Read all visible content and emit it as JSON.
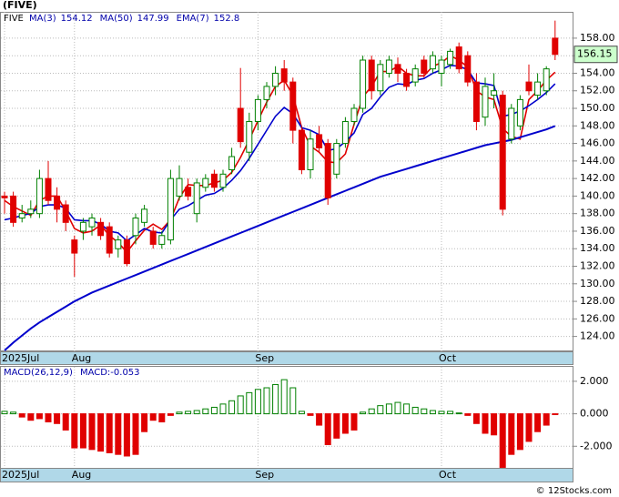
{
  "chart_data": [
    {
      "type": "candlestick",
      "title": "(FIVE)",
      "ticker": "FIVE",
      "categories": [
        "2025Jul",
        null,
        null,
        null,
        null,
        null,
        null,
        null,
        "Aug",
        null,
        null,
        null,
        null,
        null,
        null,
        null,
        null,
        null,
        null,
        null,
        null,
        null,
        null,
        null,
        null,
        null,
        null,
        null,
        null,
        "Sep",
        null,
        null,
        null,
        null,
        null,
        null,
        null,
        null,
        null,
        null,
        null,
        null,
        null,
        null,
        null,
        null,
        null,
        null,
        null,
        null,
        "Oct",
        null,
        null,
        null,
        null,
        null,
        null,
        null,
        null,
        null,
        null,
        null,
        null,
        null
      ],
      "open": [
        140,
        140,
        137.5,
        138,
        138,
        142,
        140,
        139,
        135,
        136,
        136.5,
        137,
        136.5,
        134,
        135,
        135.5,
        137,
        136,
        134.5,
        135,
        140,
        141,
        138,
        141,
        142.5,
        141,
        143,
        150,
        145,
        148.5,
        151,
        152.5,
        154.5,
        153,
        147.5,
        143,
        147,
        146,
        142.5,
        146,
        148.5,
        150,
        155.5,
        152,
        154,
        155,
        154,
        153,
        155.5,
        154.5,
        154,
        155,
        157,
        156,
        153,
        149,
        151.5,
        151.5,
        146.5,
        148,
        153,
        151.5,
        152,
        158
      ],
      "high": [
        140.5,
        140.5,
        139,
        139.5,
        143,
        144,
        141,
        139.5,
        135.5,
        137.5,
        138,
        137.5,
        137,
        135.5,
        135.5,
        138,
        139,
        136.5,
        136,
        143,
        143.5,
        142,
        142,
        142.5,
        143,
        143,
        145.5,
        154.6,
        149.5,
        151.5,
        153,
        154.8,
        155.5,
        153.5,
        148,
        147.5,
        148,
        146.5,
        146.5,
        149,
        150.5,
        156,
        156,
        155.5,
        156,
        155.8,
        154.5,
        155,
        156,
        156.5,
        156,
        156.8,
        157.5,
        156.5,
        154,
        153.5,
        154,
        152,
        150.5,
        151.5,
        155,
        154,
        154.8,
        160
      ],
      "low": [
        138,
        136.5,
        137,
        137.5,
        137.5,
        139,
        137,
        136,
        130.8,
        135,
        135.5,
        135,
        133,
        133,
        132,
        134.5,
        136.5,
        134,
        134,
        134.5,
        139.5,
        139.5,
        137,
        140.5,
        140.5,
        140.5,
        142.5,
        145.5,
        144,
        147.5,
        150,
        151.5,
        152,
        146,
        142.5,
        142,
        145,
        139,
        142,
        145.5,
        148,
        149.5,
        151,
        151.5,
        153.5,
        153,
        152,
        152.5,
        153.5,
        154,
        152.5,
        154.5,
        154,
        152.5,
        147.5,
        148,
        150,
        137.8,
        146,
        147.5,
        151.5,
        151,
        151.5,
        155.5
      ],
      "close": [
        139.8,
        137,
        138,
        138.5,
        142,
        139.5,
        138.5,
        137,
        133.5,
        137,
        137.5,
        135.5,
        133.5,
        135,
        132.3,
        137.5,
        138.5,
        134.5,
        135.5,
        142,
        142,
        140,
        141.5,
        142,
        141,
        142.5,
        144.5,
        146.2,
        148.5,
        151,
        152.5,
        154,
        153,
        147.5,
        143,
        146.5,
        145.5,
        139.8,
        146,
        148.5,
        150,
        155.5,
        152,
        155,
        155.5,
        154,
        152.5,
        154.5,
        154,
        156,
        155.5,
        156.5,
        154.5,
        153,
        148.5,
        152.5,
        152,
        138.5,
        150,
        151,
        152,
        153,
        154.5,
        156.15
      ],
      "up_color": "#008000",
      "down_color": "#e00000",
      "series": [
        {
          "name": "MA(3)",
          "legend_value": 154.12,
          "color": "#e00000",
          "values": [
            139.5,
            138.8,
            138.3,
            137.8,
            139.5,
            140,
            140,
            138.3,
            136.3,
            135.8,
            136,
            136.7,
            135.5,
            134.7,
            133.6,
            134.9,
            136.1,
            136.8,
            136.2,
            137.3,
            139.8,
            141.3,
            141.2,
            141.2,
            141.5,
            141.8,
            142.7,
            144.4,
            146.4,
            148.6,
            150.7,
            152.5,
            153.2,
            151.5,
            147.8,
            145.7,
            145,
            143.9,
            143.8,
            144.8,
            148.2,
            151.3,
            152.5,
            154.2,
            154.2,
            154.8,
            154,
            153.7,
            153.7,
            154.8,
            155.2,
            156,
            155.5,
            154.7,
            152,
            151.3,
            151,
            147.7,
            146.8,
            146.5,
            151,
            152,
            153.2,
            154.12
          ]
        },
        {
          "name": "MA(50)",
          "legend_value": 147.99,
          "color": "#0000cc",
          "values": [
            122.4,
            123.3,
            124.1,
            124.9,
            125.6,
            126.2,
            126.8,
            127.4,
            128,
            128.5,
            129,
            129.4,
            129.8,
            130.2,
            130.6,
            131,
            131.4,
            131.8,
            132.2,
            132.6,
            133,
            133.4,
            133.8,
            134.2,
            134.6,
            135,
            135.4,
            135.8,
            136.2,
            136.6,
            137,
            137.4,
            137.8,
            138.2,
            138.6,
            139,
            139.4,
            139.8,
            140.2,
            140.6,
            141,
            141.4,
            141.8,
            142.2,
            142.5,
            142.8,
            143.1,
            143.4,
            143.7,
            144,
            144.3,
            144.6,
            144.9,
            145.2,
            145.5,
            145.8,
            146,
            146.2,
            146.4,
            146.7,
            147,
            147.3,
            147.6,
            147.99
          ]
        },
        {
          "name": "EMA(7)",
          "legend_value": 152.8,
          "color": "#0000cc",
          "values": [
            137.3,
            137.5,
            137.8,
            138,
            138.8,
            139,
            139,
            138.6,
            137.3,
            137.2,
            137.2,
            136.8,
            136,
            135.8,
            134.9,
            135.6,
            136.3,
            135.9,
            135.8,
            137.3,
            138.5,
            138.9,
            139.5,
            140.1,
            140.3,
            140.9,
            141.8,
            142.9,
            144.3,
            145.9,
            147.5,
            149.1,
            150.1,
            149.4,
            147.8,
            147.5,
            147,
            145.2,
            145.4,
            146.2,
            147.2,
            149.3,
            150,
            151.3,
            152.4,
            152.8,
            152.7,
            153.2,
            153.4,
            154,
            154.4,
            154.9,
            154.8,
            154.4,
            152.9,
            152.8,
            152.6,
            149.1,
            149.3,
            149.7,
            150.3,
            151,
            151.8,
            152.8
          ]
        }
      ],
      "ylim": [
        122.3,
        161.0
      ],
      "yticks": [
        {
          "value": 124,
          "label": "124.00"
        },
        {
          "value": 126,
          "label": "126.00"
        },
        {
          "value": 128,
          "label": "128.00"
        },
        {
          "value": 130,
          "label": "130.00"
        },
        {
          "value": 132,
          "label": "132.00"
        },
        {
          "value": 134,
          "label": "134.00"
        },
        {
          "value": 136,
          "label": "136.00"
        },
        {
          "value": 138,
          "label": "138.00"
        },
        {
          "value": 140,
          "label": "140.00"
        },
        {
          "value": 142,
          "label": "142.00"
        },
        {
          "value": 144,
          "label": "144.00"
        },
        {
          "value": 146,
          "label": "146.00"
        },
        {
          "value": 148,
          "label": "148.00"
        },
        {
          "value": 150,
          "label": "150.00"
        },
        {
          "value": 152,
          "label": "152.00"
        },
        {
          "value": 154,
          "label": "154.00"
        },
        {
          "value": 156,
          "label": "156.00"
        },
        {
          "value": 158,
          "label": "158.00"
        }
      ],
      "last_value": 156.15,
      "grid": true
    },
    {
      "type": "bar",
      "title": "MACD(26,12,9)",
      "label": "MACD:-0.053",
      "values": [
        0.15,
        0.1,
        -0.2,
        -0.4,
        -0.3,
        -0.5,
        -0.6,
        -1.0,
        -2.1,
        -2.1,
        -2.2,
        -2.3,
        -2.4,
        -2.5,
        -2.6,
        -2.5,
        -1.1,
        -0.4,
        -0.5,
        -0.1,
        0.1,
        0.15,
        0.2,
        0.3,
        0.4,
        0.6,
        0.8,
        1.1,
        1.3,
        1.5,
        1.6,
        1.8,
        2.1,
        1.6,
        0.15,
        -0.1,
        -0.7,
        -1.9,
        -1.5,
        -1.2,
        -1.0,
        0.1,
        0.3,
        0.5,
        0.6,
        0.7,
        0.6,
        0.4,
        0.3,
        0.2,
        0.15,
        0.15,
        0.05,
        -0.1,
        -0.6,
        -1.2,
        -1.3,
        -3.3,
        -2.5,
        -2.2,
        -1.7,
        -1.1,
        -0.7,
        -0.053
      ],
      "pos_color": "#008000",
      "neg_color": "#e00000",
      "ylim": [
        -3.33,
        2.89
      ],
      "yticks": [
        {
          "value": 2,
          "label": "2.000"
        },
        {
          "value": 0,
          "label": "0.000"
        },
        {
          "value": -2,
          "label": "-2.000"
        }
      ],
      "grid": true
    }
  ],
  "copyright": "© 12Stocks.com"
}
